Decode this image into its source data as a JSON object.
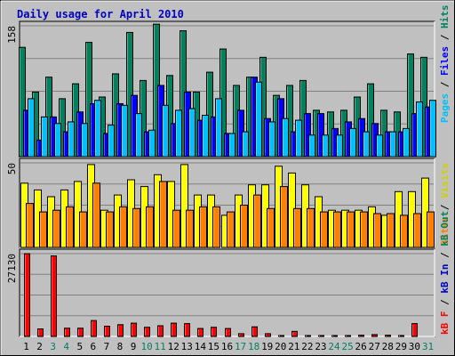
{
  "colors": {
    "background": "#C0C0C0",
    "plot_bg": "#C0C0C0",
    "gridline": "#808080",
    "title": "#0000C0",
    "hits": "#00805C",
    "files": "#0000FF",
    "pages": "#00C0FF",
    "visits": "#FFFF00",
    "sites": "#FF8000",
    "kbytes": "#FF0000",
    "weekend_label": "#00805C",
    "weekday_label": "#000000",
    "bar_outline": "#000000"
  },
  "chart_data": [
    {
      "type": "bar",
      "title": "Daily usage for April 2010",
      "categories": [
        "1",
        "2",
        "3",
        "4",
        "5",
        "6",
        "7",
        "8",
        "9",
        "10",
        "11",
        "12",
        "13",
        "14",
        "15",
        "16",
        "17",
        "18",
        "19",
        "20",
        "21",
        "22",
        "23",
        "24",
        "25",
        "26",
        "27",
        "28",
        "29",
        "30",
        "31"
      ],
      "weekend_days": [
        "3",
        "4",
        "10",
        "11",
        "17",
        "18",
        "24",
        "25",
        "31"
      ],
      "y_tick": "158",
      "ylim": [
        0,
        158
      ],
      "legend": [
        "Pages",
        "Files",
        "Hits"
      ],
      "series": [
        {
          "name": "Hits",
          "color_key": "hits",
          "values": [
            132,
            78,
            96,
            70,
            88,
            138,
            72,
            100,
            150,
            92,
            160,
            98,
            152,
            78,
            102,
            130,
            86,
            96,
            120,
            74,
            86,
            92,
            56,
            54,
            56,
            72,
            88,
            56,
            54,
            124,
            120
          ]
        },
        {
          "name": "Files",
          "color_key": "files",
          "values": [
            56,
            20,
            48,
            30,
            54,
            64,
            28,
            64,
            74,
            30,
            86,
            40,
            78,
            44,
            48,
            28,
            56,
            96,
            46,
            70,
            30,
            52,
            52,
            34,
            42,
            46,
            40,
            30,
            30,
            52,
            60
          ]
        },
        {
          "name": "Pages",
          "color_key": "pages",
          "values": [
            70,
            48,
            40,
            42,
            40,
            68,
            38,
            62,
            52,
            32,
            62,
            56,
            58,
            50,
            70,
            28,
            30,
            90,
            42,
            46,
            44,
            26,
            26,
            26,
            34,
            30,
            26,
            30,
            34,
            66,
            68
          ]
        }
      ]
    },
    {
      "type": "bar",
      "categories": [
        "1",
        "2",
        "3",
        "4",
        "5",
        "6",
        "7",
        "8",
        "9",
        "10",
        "11",
        "12",
        "13",
        "14",
        "15",
        "16",
        "17",
        "18",
        "19",
        "20",
        "21",
        "22",
        "23",
        "24",
        "25",
        "26",
        "27",
        "28",
        "29",
        "30",
        "31"
      ],
      "y_tick": "50",
      "ylim": [
        0,
        50
      ],
      "legend": [
        "Sites",
        "Visits"
      ],
      "series": [
        {
          "name": "Visits",
          "color_key": "visits",
          "values": [
            38,
            34,
            30,
            34,
            39,
            49,
            22,
            31,
            40,
            36,
            43,
            39,
            49,
            31,
            31,
            19,
            31,
            37,
            37,
            48,
            44,
            37,
            30,
            22,
            22,
            22,
            24,
            19,
            33,
            33,
            41
          ]
        },
        {
          "name": "Sites",
          "color_key": "sites",
          "values": [
            26,
            21,
            22,
            24,
            21,
            38,
            21,
            24,
            23,
            24,
            39,
            22,
            22,
            24,
            24,
            21,
            25,
            31,
            23,
            36,
            23,
            23,
            21,
            21,
            21,
            21,
            20,
            20,
            19,
            20,
            21
          ]
        }
      ]
    },
    {
      "type": "bar",
      "categories": [
        "1",
        "2",
        "3",
        "4",
        "5",
        "6",
        "7",
        "8",
        "9",
        "10",
        "11",
        "12",
        "13",
        "14",
        "15",
        "16",
        "17",
        "18",
        "19",
        "20",
        "21",
        "22",
        "23",
        "24",
        "25",
        "26",
        "27",
        "28",
        "29",
        "30",
        "31"
      ],
      "y_tick": "27130",
      "ylim": [
        0,
        27130
      ],
      "legend": [
        "kB F",
        "kB In",
        "kB Out"
      ],
      "series": [
        {
          "name": "kB F",
          "color_key": "kbytes",
          "values": [
            27130,
            2450,
            26400,
            2700,
            2700,
            5200,
            3350,
            3850,
            4350,
            3000,
            3500,
            4350,
            4200,
            2600,
            3000,
            2600,
            900,
            3150,
            900,
            300,
            1650,
            300,
            300,
            300,
            300,
            400,
            600,
            400,
            300,
            4200,
            0
          ]
        }
      ]
    }
  ]
}
